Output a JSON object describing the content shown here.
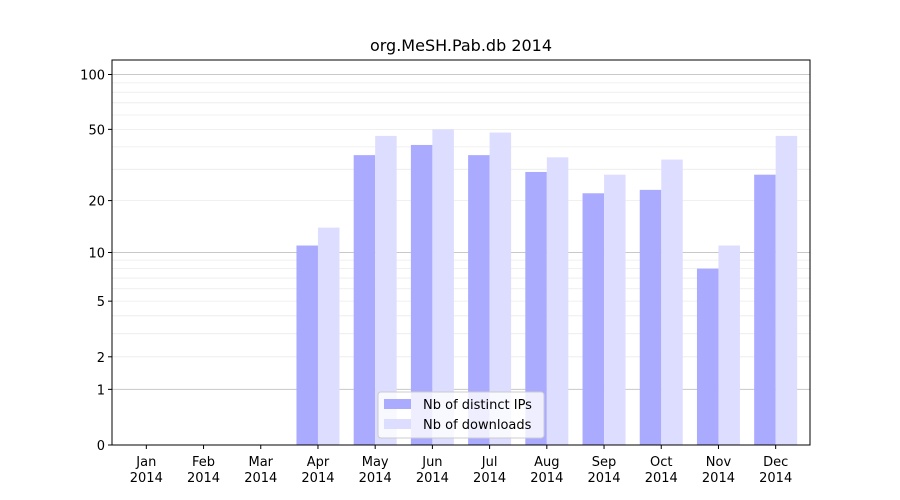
{
  "chart_data": {
    "type": "bar",
    "title": "org.MeSH.Pab.db 2014",
    "xlabel": "",
    "ylabel": "",
    "categories": [
      [
        "Jan",
        "2014"
      ],
      [
        "Feb",
        "2014"
      ],
      [
        "Mar",
        "2014"
      ],
      [
        "Apr",
        "2014"
      ],
      [
        "May",
        "2014"
      ],
      [
        "Jun",
        "2014"
      ],
      [
        "Jul",
        "2014"
      ],
      [
        "Aug",
        "2014"
      ],
      [
        "Sep",
        "2014"
      ],
      [
        "Oct",
        "2014"
      ],
      [
        "Nov",
        "2014"
      ],
      [
        "Dec",
        "2014"
      ]
    ],
    "series": [
      {
        "name": "Nb of distinct IPs",
        "color": "#aaaaff",
        "values": [
          0,
          0,
          0,
          11,
          36,
          41,
          36,
          29,
          22,
          23,
          8,
          28
        ]
      },
      {
        "name": "Nb of downloads",
        "color": "#ddddff",
        "values": [
          0,
          0,
          0,
          14,
          46,
          50,
          48,
          35,
          28,
          34,
          11,
          46
        ]
      }
    ],
    "y_scale": "log(1+y)",
    "ylim": [
      0,
      120
    ],
    "y_ticks": [
      {
        "value": 0,
        "label": "0"
      },
      {
        "value": 1,
        "label": "1"
      },
      {
        "value": 2,
        "label": "2"
      },
      {
        "value": 5,
        "label": "5"
      },
      {
        "value": 10,
        "label": "10"
      },
      {
        "value": 20,
        "label": "20"
      },
      {
        "value": 50,
        "label": "50"
      },
      {
        "value": 100,
        "label": "100"
      }
    ],
    "y_major_grid": [
      1,
      10,
      100
    ],
    "y_minor_grid": [
      2,
      3,
      4,
      5,
      6,
      7,
      8,
      9,
      20,
      30,
      40,
      50,
      60,
      70,
      80,
      90
    ],
    "grid": true,
    "legend_position": "bottom-center"
  }
}
